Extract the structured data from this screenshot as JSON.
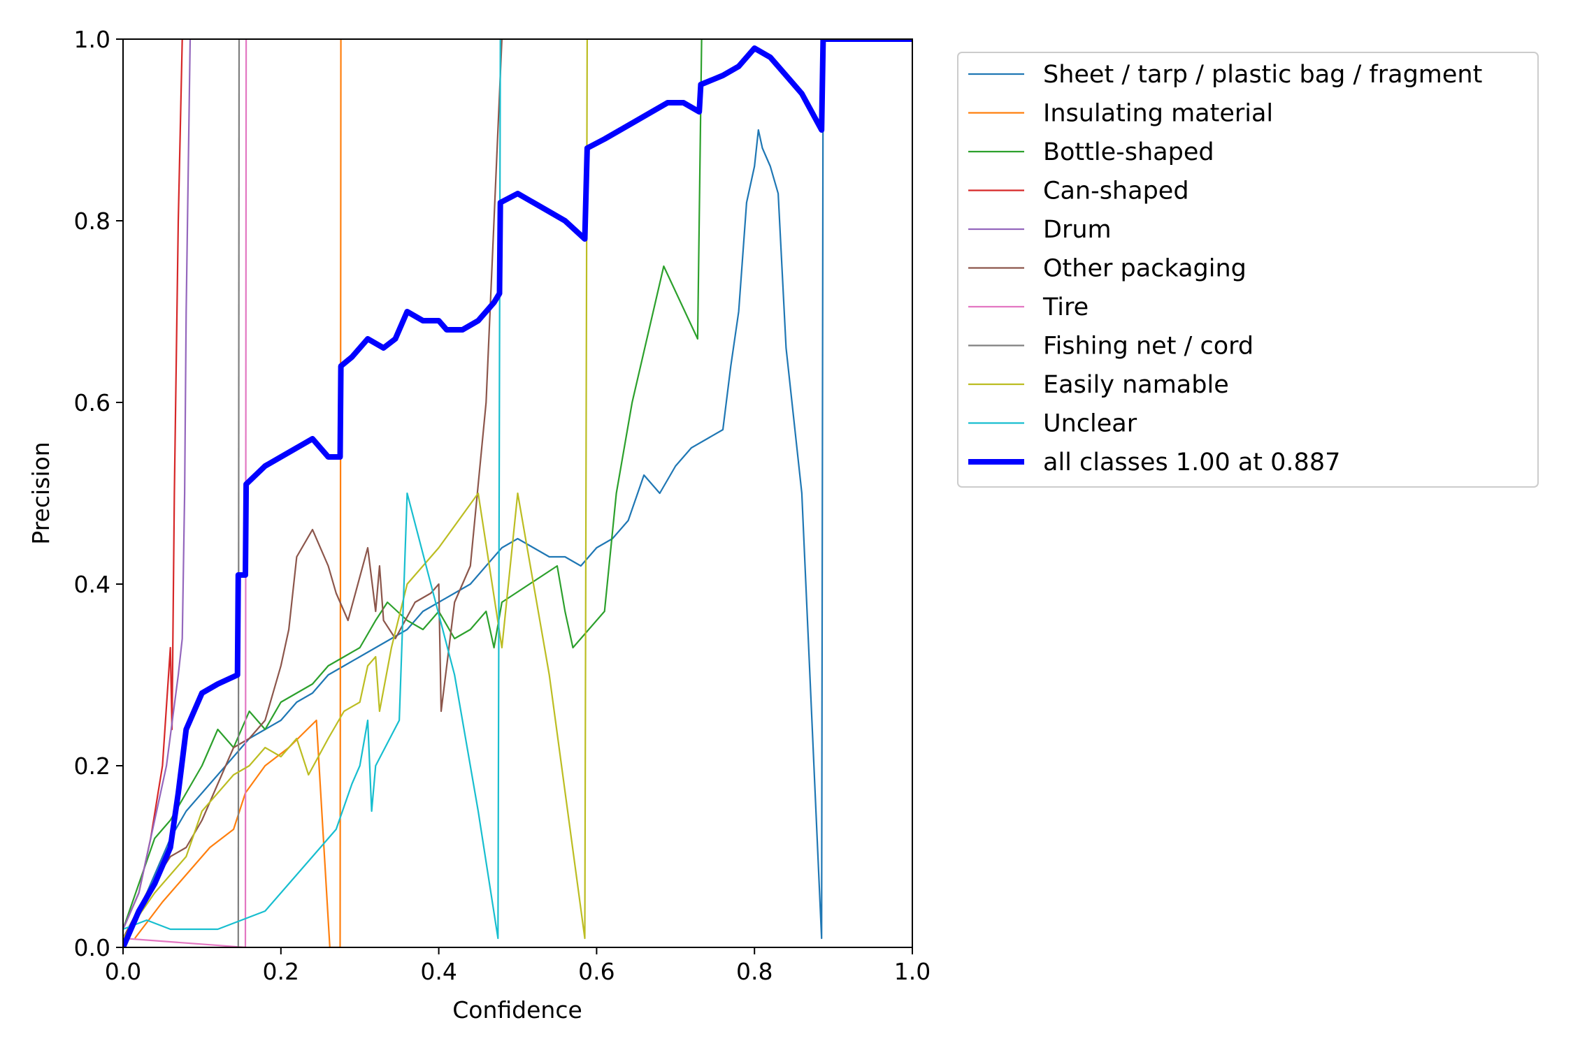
{
  "chart_data": {
    "type": "line",
    "title": "",
    "xlabel": "Confidence",
    "ylabel": "Precision",
    "xlim": [
      0,
      1
    ],
    "ylim": [
      0,
      1
    ],
    "xticks": [
      "0.0",
      "0.2",
      "0.4",
      "0.6",
      "0.8",
      "1.0"
    ],
    "yticks": [
      "0.0",
      "0.2",
      "0.4",
      "0.6",
      "0.8",
      "1.0"
    ],
    "grid": false,
    "legend_position": "outside-upper-right",
    "series": [
      {
        "name": "Sheet / tarp / plastic bag / fragment",
        "color": "#1f77b4",
        "width": "thin",
        "points": [
          [
            0.0,
            0.01
          ],
          [
            0.02,
            0.04
          ],
          [
            0.04,
            0.08
          ],
          [
            0.06,
            0.12
          ],
          [
            0.08,
            0.15
          ],
          [
            0.1,
            0.17
          ],
          [
            0.12,
            0.19
          ],
          [
            0.14,
            0.21
          ],
          [
            0.16,
            0.23
          ],
          [
            0.18,
            0.24
          ],
          [
            0.2,
            0.25
          ],
          [
            0.22,
            0.27
          ],
          [
            0.24,
            0.28
          ],
          [
            0.26,
            0.3
          ],
          [
            0.28,
            0.31
          ],
          [
            0.3,
            0.32
          ],
          [
            0.32,
            0.33
          ],
          [
            0.34,
            0.34
          ],
          [
            0.36,
            0.35
          ],
          [
            0.38,
            0.37
          ],
          [
            0.4,
            0.38
          ],
          [
            0.42,
            0.39
          ],
          [
            0.44,
            0.4
          ],
          [
            0.46,
            0.42
          ],
          [
            0.48,
            0.44
          ],
          [
            0.5,
            0.45
          ],
          [
            0.52,
            0.44
          ],
          [
            0.54,
            0.43
          ],
          [
            0.56,
            0.43
          ],
          [
            0.58,
            0.42
          ],
          [
            0.6,
            0.44
          ],
          [
            0.62,
            0.45
          ],
          [
            0.64,
            0.47
          ],
          [
            0.66,
            0.52
          ],
          [
            0.68,
            0.5
          ],
          [
            0.7,
            0.53
          ],
          [
            0.72,
            0.55
          ],
          [
            0.74,
            0.56
          ],
          [
            0.76,
            0.57
          ],
          [
            0.77,
            0.64
          ],
          [
            0.78,
            0.7
          ],
          [
            0.79,
            0.82
          ],
          [
            0.8,
            0.86
          ],
          [
            0.805,
            0.9
          ],
          [
            0.81,
            0.88
          ],
          [
            0.82,
            0.86
          ],
          [
            0.83,
            0.83
          ],
          [
            0.84,
            0.66
          ],
          [
            0.86,
            0.5
          ],
          [
            0.885,
            0.01
          ],
          [
            0.887,
            1.0
          ],
          [
            1.0,
            1.0
          ]
        ]
      },
      {
        "name": "Insulating material",
        "color": "#ff7f0e",
        "width": "thin",
        "points": [
          [
            0.015,
            0.01
          ],
          [
            0.05,
            0.05
          ],
          [
            0.08,
            0.08
          ],
          [
            0.11,
            0.11
          ],
          [
            0.14,
            0.13
          ],
          [
            0.155,
            0.17
          ],
          [
            0.18,
            0.2
          ],
          [
            0.21,
            0.22
          ],
          [
            0.245,
            0.25
          ],
          [
            0.262,
            0.0
          ],
          [
            0.275,
            0.0
          ],
          [
            0.276,
            1.0
          ]
        ]
      },
      {
        "name": "Bottle-shaped",
        "color": "#2ca02c",
        "width": "thin",
        "points": [
          [
            0.0,
            0.02
          ],
          [
            0.02,
            0.07
          ],
          [
            0.04,
            0.12
          ],
          [
            0.06,
            0.14
          ],
          [
            0.08,
            0.17
          ],
          [
            0.1,
            0.2
          ],
          [
            0.12,
            0.24
          ],
          [
            0.14,
            0.22
          ],
          [
            0.16,
            0.26
          ],
          [
            0.18,
            0.24
          ],
          [
            0.2,
            0.27
          ],
          [
            0.22,
            0.28
          ],
          [
            0.24,
            0.29
          ],
          [
            0.26,
            0.31
          ],
          [
            0.28,
            0.32
          ],
          [
            0.3,
            0.33
          ],
          [
            0.32,
            0.36
          ],
          [
            0.335,
            0.38
          ],
          [
            0.36,
            0.36
          ],
          [
            0.38,
            0.35
          ],
          [
            0.4,
            0.37
          ],
          [
            0.42,
            0.34
          ],
          [
            0.44,
            0.35
          ],
          [
            0.46,
            0.37
          ],
          [
            0.47,
            0.33
          ],
          [
            0.48,
            0.38
          ],
          [
            0.55,
            0.42
          ],
          [
            0.56,
            0.37
          ],
          [
            0.57,
            0.33
          ],
          [
            0.61,
            0.37
          ],
          [
            0.625,
            0.5
          ],
          [
            0.645,
            0.6
          ],
          [
            0.685,
            0.75
          ],
          [
            0.728,
            0.67
          ],
          [
            0.733,
            1.0
          ]
        ]
      },
      {
        "name": "Can-shaped",
        "color": "#d62728",
        "width": "thin",
        "points": [
          [
            0.0,
            0.02
          ],
          [
            0.02,
            0.06
          ],
          [
            0.035,
            0.12
          ],
          [
            0.05,
            0.2
          ],
          [
            0.06,
            0.33
          ],
          [
            0.062,
            0.24
          ],
          [
            0.065,
            0.5
          ],
          [
            0.07,
            0.8
          ],
          [
            0.075,
            1.0
          ]
        ]
      },
      {
        "name": "Drum",
        "color": "#9467bd",
        "width": "thin",
        "points": [
          [
            0.0,
            0.02
          ],
          [
            0.02,
            0.06
          ],
          [
            0.04,
            0.14
          ],
          [
            0.055,
            0.2
          ],
          [
            0.07,
            0.3
          ],
          [
            0.075,
            0.34
          ],
          [
            0.078,
            0.5
          ],
          [
            0.08,
            0.7
          ],
          [
            0.085,
            1.0
          ]
        ]
      },
      {
        "name": "Other packaging",
        "color": "#8c564b",
        "width": "thin",
        "points": [
          [
            0.0,
            0.01
          ],
          [
            0.03,
            0.06
          ],
          [
            0.06,
            0.1
          ],
          [
            0.08,
            0.11
          ],
          [
            0.1,
            0.14
          ],
          [
            0.12,
            0.18
          ],
          [
            0.14,
            0.22
          ],
          [
            0.16,
            0.23
          ],
          [
            0.18,
            0.25
          ],
          [
            0.2,
            0.31
          ],
          [
            0.21,
            0.35
          ],
          [
            0.22,
            0.43
          ],
          [
            0.24,
            0.46
          ],
          [
            0.26,
            0.42
          ],
          [
            0.27,
            0.39
          ],
          [
            0.285,
            0.36
          ],
          [
            0.31,
            0.44
          ],
          [
            0.32,
            0.37
          ],
          [
            0.325,
            0.42
          ],
          [
            0.33,
            0.36
          ],
          [
            0.345,
            0.34
          ],
          [
            0.37,
            0.38
          ],
          [
            0.39,
            0.39
          ],
          [
            0.4,
            0.4
          ],
          [
            0.403,
            0.26
          ],
          [
            0.42,
            0.38
          ],
          [
            0.44,
            0.42
          ],
          [
            0.46,
            0.6
          ],
          [
            0.47,
            0.8
          ],
          [
            0.48,
            1.0
          ]
        ]
      },
      {
        "name": "Tire",
        "color": "#e377c2",
        "width": "thin",
        "points": [
          [
            0.0,
            0.01
          ],
          [
            0.155,
            0.0
          ],
          [
            0.156,
            1.0
          ]
        ]
      },
      {
        "name": "Fishing net / cord",
        "color": "#7f7f7f",
        "width": "thin",
        "points": [
          [
            0.146,
            0.0
          ],
          [
            0.147,
            1.0
          ]
        ]
      },
      {
        "name": "Easily namable",
        "color": "#bcbd22",
        "width": "thin",
        "points": [
          [
            0.0,
            0.01
          ],
          [
            0.04,
            0.06
          ],
          [
            0.08,
            0.1
          ],
          [
            0.1,
            0.15
          ],
          [
            0.12,
            0.17
          ],
          [
            0.14,
            0.19
          ],
          [
            0.16,
            0.2
          ],
          [
            0.18,
            0.22
          ],
          [
            0.2,
            0.21
          ],
          [
            0.22,
            0.23
          ],
          [
            0.235,
            0.19
          ],
          [
            0.26,
            0.23
          ],
          [
            0.28,
            0.26
          ],
          [
            0.3,
            0.27
          ],
          [
            0.31,
            0.31
          ],
          [
            0.32,
            0.32
          ],
          [
            0.325,
            0.26
          ],
          [
            0.34,
            0.33
          ],
          [
            0.36,
            0.4
          ],
          [
            0.4,
            0.44
          ],
          [
            0.45,
            0.5
          ],
          [
            0.48,
            0.33
          ],
          [
            0.5,
            0.5
          ],
          [
            0.52,
            0.4
          ],
          [
            0.54,
            0.3
          ],
          [
            0.585,
            0.01
          ],
          [
            0.588,
            1.0
          ]
        ]
      },
      {
        "name": "Unclear",
        "color": "#17becf",
        "width": "thin",
        "points": [
          [
            0.0,
            0.02
          ],
          [
            0.03,
            0.03
          ],
          [
            0.06,
            0.02
          ],
          [
            0.09,
            0.02
          ],
          [
            0.12,
            0.02
          ],
          [
            0.15,
            0.03
          ],
          [
            0.18,
            0.04
          ],
          [
            0.21,
            0.07
          ],
          [
            0.24,
            0.1
          ],
          [
            0.27,
            0.13
          ],
          [
            0.29,
            0.18
          ],
          [
            0.3,
            0.2
          ],
          [
            0.31,
            0.25
          ],
          [
            0.315,
            0.15
          ],
          [
            0.32,
            0.2
          ],
          [
            0.35,
            0.25
          ],
          [
            0.36,
            0.5
          ],
          [
            0.39,
            0.4
          ],
          [
            0.42,
            0.3
          ],
          [
            0.45,
            0.15
          ],
          [
            0.475,
            0.01
          ],
          [
            0.478,
            1.0
          ]
        ]
      },
      {
        "name": "all classes 1.00 at 0.887",
        "color": "#0000ff",
        "width": "thick",
        "points": [
          [
            0.0,
            0.0
          ],
          [
            0.02,
            0.04
          ],
          [
            0.04,
            0.07
          ],
          [
            0.06,
            0.11
          ],
          [
            0.07,
            0.17
          ],
          [
            0.08,
            0.24
          ],
          [
            0.1,
            0.28
          ],
          [
            0.12,
            0.29
          ],
          [
            0.145,
            0.3
          ],
          [
            0.146,
            0.41
          ],
          [
            0.155,
            0.41
          ],
          [
            0.156,
            0.51
          ],
          [
            0.18,
            0.53
          ],
          [
            0.2,
            0.54
          ],
          [
            0.22,
            0.55
          ],
          [
            0.24,
            0.56
          ],
          [
            0.26,
            0.54
          ],
          [
            0.275,
            0.54
          ],
          [
            0.276,
            0.64
          ],
          [
            0.29,
            0.65
          ],
          [
            0.31,
            0.67
          ],
          [
            0.33,
            0.66
          ],
          [
            0.345,
            0.67
          ],
          [
            0.36,
            0.7
          ],
          [
            0.38,
            0.69
          ],
          [
            0.4,
            0.69
          ],
          [
            0.41,
            0.68
          ],
          [
            0.43,
            0.68
          ],
          [
            0.45,
            0.69
          ],
          [
            0.47,
            0.71
          ],
          [
            0.477,
            0.72
          ],
          [
            0.478,
            0.82
          ],
          [
            0.5,
            0.83
          ],
          [
            0.52,
            0.82
          ],
          [
            0.54,
            0.81
          ],
          [
            0.56,
            0.8
          ],
          [
            0.585,
            0.78
          ],
          [
            0.588,
            0.88
          ],
          [
            0.61,
            0.89
          ],
          [
            0.63,
            0.9
          ],
          [
            0.65,
            0.91
          ],
          [
            0.67,
            0.92
          ],
          [
            0.69,
            0.93
          ],
          [
            0.71,
            0.93
          ],
          [
            0.73,
            0.92
          ],
          [
            0.732,
            0.95
          ],
          [
            0.76,
            0.96
          ],
          [
            0.78,
            0.97
          ],
          [
            0.8,
            0.99
          ],
          [
            0.82,
            0.98
          ],
          [
            0.84,
            0.96
          ],
          [
            0.86,
            0.94
          ],
          [
            0.885,
            0.9
          ],
          [
            0.887,
            1.0
          ],
          [
            1.0,
            1.0
          ]
        ]
      }
    ]
  }
}
